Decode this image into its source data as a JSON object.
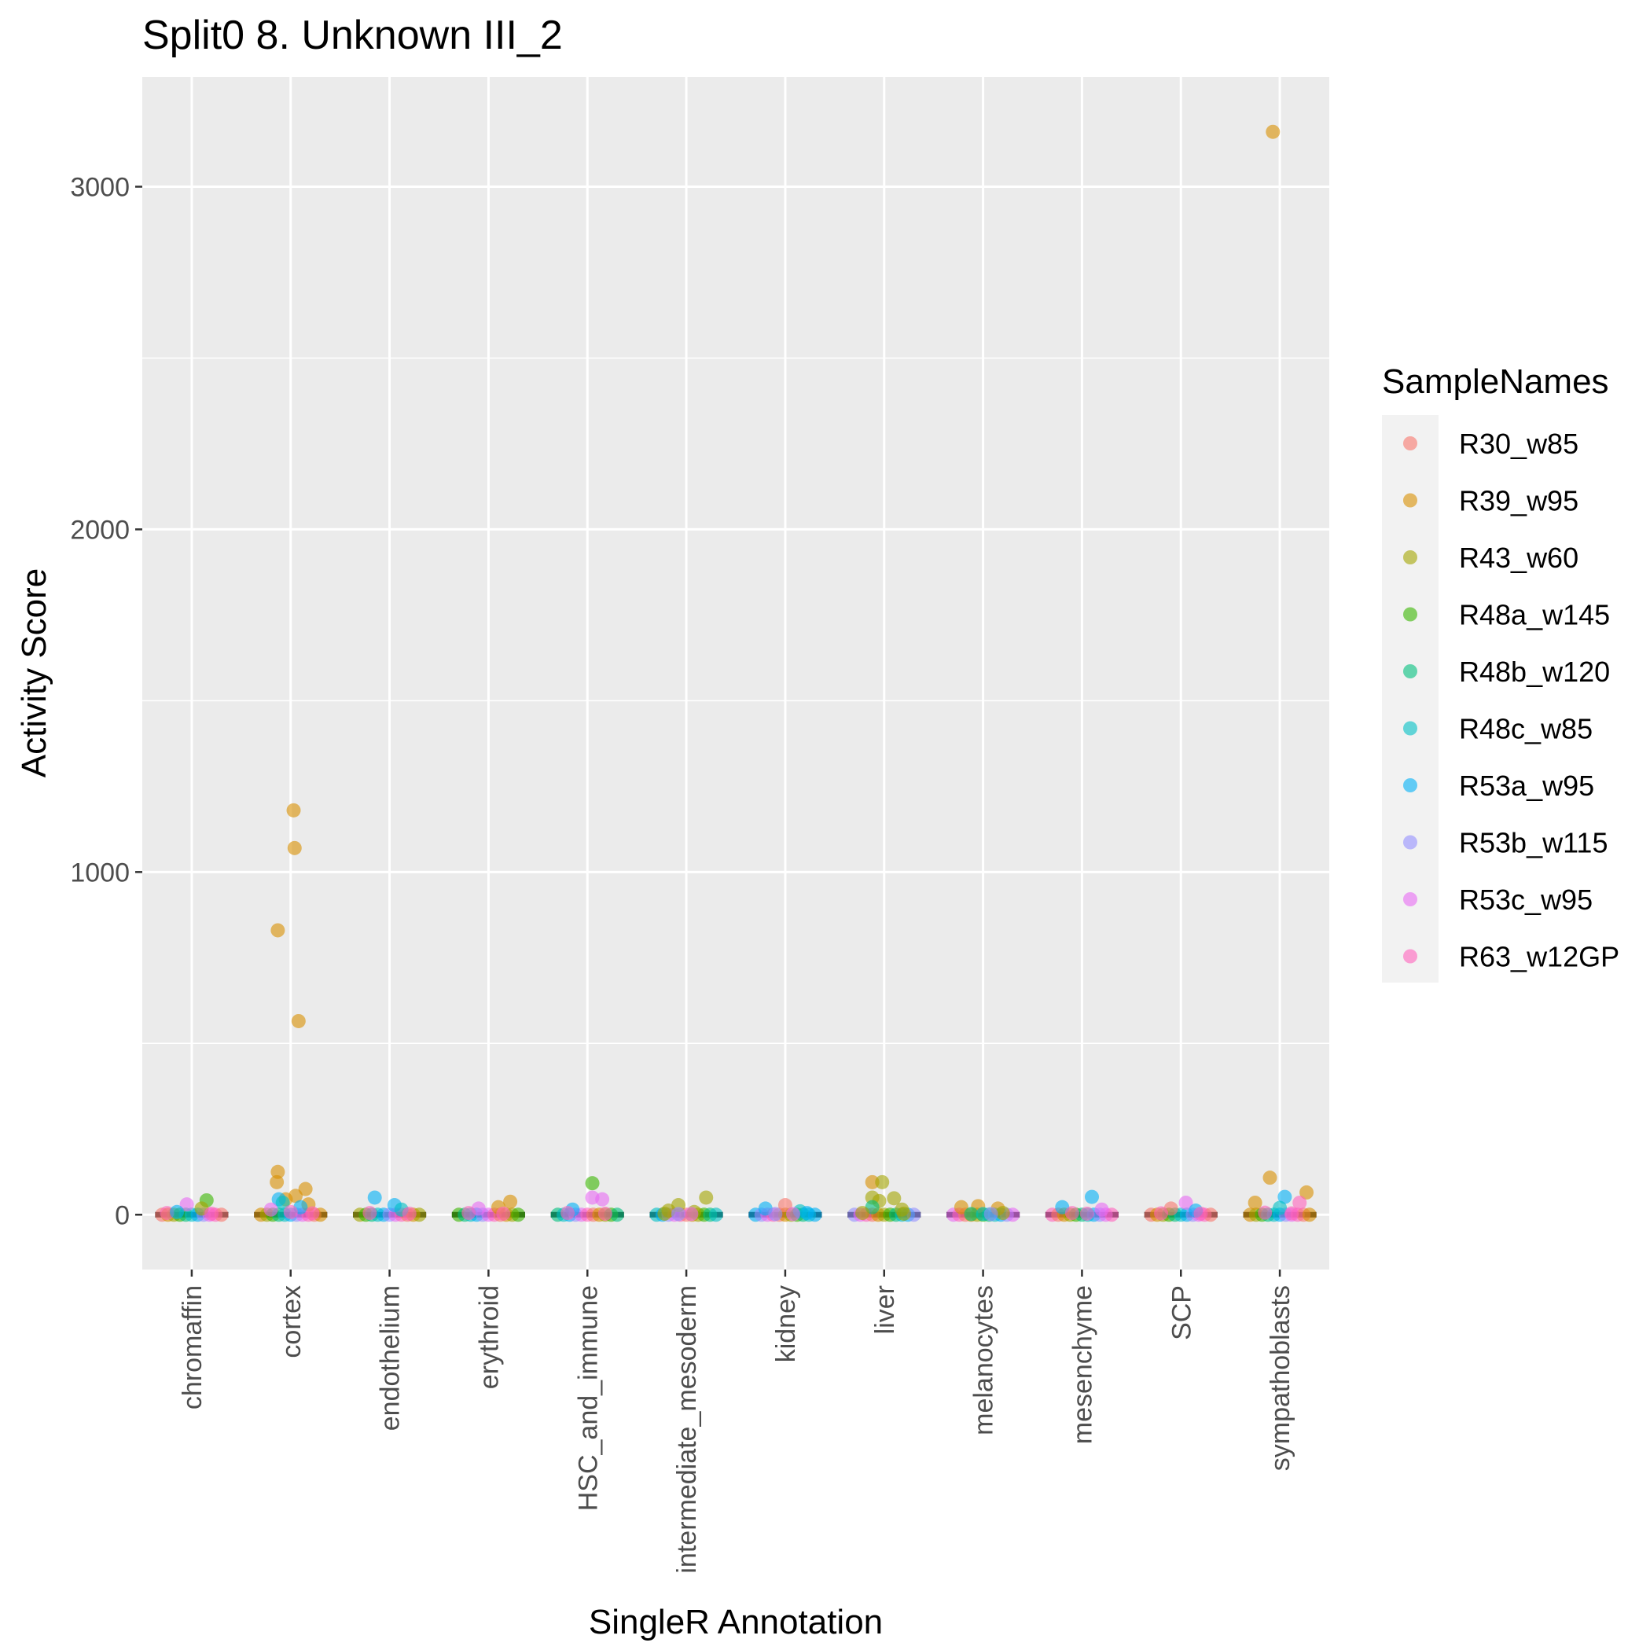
{
  "chart_data": {
    "type": "scatter",
    "title": "Split0 8. Unknown III_2",
    "xlabel": "SingleR Annotation",
    "ylabel": "Activity Score",
    "ylim": [
      -160,
      3320
    ],
    "yticks": [
      0,
      1000,
      2000,
      3000
    ],
    "y_minor_ticks": [
      500,
      1500,
      2500
    ],
    "grid": true,
    "legend": {
      "title": "SampleNames",
      "placement": "right",
      "entries": [
        "R30_w85",
        "R39_w95",
        "R43_w60",
        "R48a_w145",
        "R48b_w120",
        "R48c_w85",
        "R53a_w95",
        "R53b_w115",
        "R53c_w95",
        "R63_w12GP"
      ]
    },
    "colors": {
      "R30_w85": "#F8766D",
      "R39_w95": "#D89000",
      "R43_w60": "#A3A500",
      "R48a_w145": "#39B600",
      "R48b_w120": "#00BF7D",
      "R48c_w85": "#00BFC4",
      "R53a_w95": "#00B0F6",
      "R53b_w115": "#9590FF",
      "R53c_w95": "#E76BF3",
      "R63_w12GP": "#FF62BC"
    },
    "categories": [
      "chromaffin",
      "cortex",
      "endothelium",
      "erythroid",
      "HSC_and_immune",
      "intermediate_mesoderm",
      "kidney",
      "liver",
      "melanocytes",
      "mesenchyme",
      "SCP",
      "sympathoblasts"
    ],
    "medians": [
      0,
      0,
      0,
      0,
      0,
      0,
      0,
      0,
      0,
      0,
      0,
      0
    ],
    "points": [
      {
        "category": "chromaffin",
        "sample": "R48a_w145",
        "x_offset": 0.15,
        "y": 42
      },
      {
        "category": "chromaffin",
        "sample": "R53c_w95",
        "x_offset": -0.05,
        "y": 30
      },
      {
        "category": "chromaffin",
        "sample": "R43_w60",
        "x_offset": 0.1,
        "y": 18
      },
      {
        "category": "chromaffin",
        "sample": "R63_w12GP",
        "x_offset": -0.25,
        "y": 5
      },
      {
        "category": "chromaffin",
        "sample": "R63_w12GP",
        "x_offset": 0.2,
        "y": 3
      },
      {
        "category": "chromaffin",
        "sample": "R53a_w95",
        "x_offset": -0.15,
        "y": 8
      },
      {
        "category": "cortex",
        "sample": "R39_w95",
        "x_offset": 0.03,
        "y": 1180
      },
      {
        "category": "cortex",
        "sample": "R39_w95",
        "x_offset": 0.04,
        "y": 1070
      },
      {
        "category": "cortex",
        "sample": "R39_w95",
        "x_offset": -0.13,
        "y": 830
      },
      {
        "category": "cortex",
        "sample": "R39_w95",
        "x_offset": 0.08,
        "y": 565
      },
      {
        "category": "cortex",
        "sample": "R39_w95",
        "x_offset": -0.13,
        "y": 125
      },
      {
        "category": "cortex",
        "sample": "R39_w95",
        "x_offset": -0.14,
        "y": 95
      },
      {
        "category": "cortex",
        "sample": "R39_w95",
        "x_offset": 0.15,
        "y": 75
      },
      {
        "category": "cortex",
        "sample": "R39_w95",
        "x_offset": 0.05,
        "y": 55
      },
      {
        "category": "cortex",
        "sample": "R39_w95",
        "x_offset": -0.05,
        "y": 45
      },
      {
        "category": "cortex",
        "sample": "R53a_w95",
        "x_offset": -0.12,
        "y": 45
      },
      {
        "category": "cortex",
        "sample": "R48c_w85",
        "x_offset": -0.08,
        "y": 35
      },
      {
        "category": "cortex",
        "sample": "R39_w95",
        "x_offset": 0.18,
        "y": 30
      },
      {
        "category": "cortex",
        "sample": "R53a_w95",
        "x_offset": 0.1,
        "y": 22
      },
      {
        "category": "cortex",
        "sample": "R53c_w95",
        "x_offset": -0.2,
        "y": 15
      },
      {
        "category": "cortex",
        "sample": "R63_w12GP",
        "x_offset": 0.0,
        "y": 8
      },
      {
        "category": "cortex",
        "sample": "R63_w12GP",
        "x_offset": 0.22,
        "y": 4
      },
      {
        "category": "endothelium",
        "sample": "R53a_w95",
        "x_offset": -0.15,
        "y": 50
      },
      {
        "category": "endothelium",
        "sample": "R53a_w95",
        "x_offset": 0.05,
        "y": 28
      },
      {
        "category": "endothelium",
        "sample": "R48c_w85",
        "x_offset": 0.12,
        "y": 15
      },
      {
        "category": "endothelium",
        "sample": "R63_w12GP",
        "x_offset": -0.2,
        "y": 5
      },
      {
        "category": "endothelium",
        "sample": "R63_w12GP",
        "x_offset": 0.2,
        "y": 3
      },
      {
        "category": "erythroid",
        "sample": "R39_w95",
        "x_offset": 0.22,
        "y": 38
      },
      {
        "category": "erythroid",
        "sample": "R39_w95",
        "x_offset": 0.1,
        "y": 22
      },
      {
        "category": "erythroid",
        "sample": "R53c_w95",
        "x_offset": -0.1,
        "y": 18
      },
      {
        "category": "erythroid",
        "sample": "R63_w12GP",
        "x_offset": -0.2,
        "y": 5
      },
      {
        "category": "erythroid",
        "sample": "R63_w12GP",
        "x_offset": 0.15,
        "y": 3
      },
      {
        "category": "HSC_and_immune",
        "sample": "R48a_w145",
        "x_offset": 0.05,
        "y": 92
      },
      {
        "category": "HSC_and_immune",
        "sample": "R53c_w95",
        "x_offset": 0.05,
        "y": 50
      },
      {
        "category": "HSC_and_immune",
        "sample": "R53c_w95",
        "x_offset": 0.15,
        "y": 45
      },
      {
        "category": "HSC_and_immune",
        "sample": "R53a_w95",
        "x_offset": -0.15,
        "y": 15
      },
      {
        "category": "HSC_and_immune",
        "sample": "R63_w12GP",
        "x_offset": -0.2,
        "y": 5
      },
      {
        "category": "HSC_and_immune",
        "sample": "R63_w12GP",
        "x_offset": 0.18,
        "y": 3
      },
      {
        "category": "intermediate_mesoderm",
        "sample": "R43_w60",
        "x_offset": 0.2,
        "y": 50
      },
      {
        "category": "intermediate_mesoderm",
        "sample": "R43_w60",
        "x_offset": -0.08,
        "y": 28
      },
      {
        "category": "intermediate_mesoderm",
        "sample": "R43_w60",
        "x_offset": -0.18,
        "y": 12
      },
      {
        "category": "intermediate_mesoderm",
        "sample": "R43_w60",
        "x_offset": 0.08,
        "y": 8
      },
      {
        "category": "intermediate_mesoderm",
        "sample": "R43_w60",
        "x_offset": -0.22,
        "y": 3
      },
      {
        "category": "intermediate_mesoderm",
        "sample": "R53b_w115",
        "x_offset": -0.08,
        "y": 2
      },
      {
        "category": "intermediate_mesoderm",
        "sample": "R53c_w95",
        "x_offset": 0.05,
        "y": 2
      },
      {
        "category": "kidney",
        "sample": "R30_w85",
        "x_offset": 0.0,
        "y": 28
      },
      {
        "category": "kidney",
        "sample": "R53a_w95",
        "x_offset": -0.2,
        "y": 18
      },
      {
        "category": "kidney",
        "sample": "R48c_w85",
        "x_offset": 0.15,
        "y": 10
      },
      {
        "category": "kidney",
        "sample": "R53a_w95",
        "x_offset": 0.22,
        "y": 5
      },
      {
        "category": "kidney",
        "sample": "R53b_w115",
        "x_offset": -0.1,
        "y": 2
      },
      {
        "category": "kidney",
        "sample": "R53c_w95",
        "x_offset": 0.08,
        "y": 2
      },
      {
        "category": "liver",
        "sample": "R39_w95",
        "x_offset": -0.12,
        "y": 95
      },
      {
        "category": "liver",
        "sample": "R43_w60",
        "x_offset": -0.02,
        "y": 95
      },
      {
        "category": "liver",
        "sample": "R43_w60",
        "x_offset": -0.12,
        "y": 50
      },
      {
        "category": "liver",
        "sample": "R43_w60",
        "x_offset": 0.1,
        "y": 48
      },
      {
        "category": "liver",
        "sample": "R43_w60",
        "x_offset": -0.05,
        "y": 40
      },
      {
        "category": "liver",
        "sample": "R48b_w120",
        "x_offset": -0.12,
        "y": 22
      },
      {
        "category": "liver",
        "sample": "R43_w60",
        "x_offset": 0.18,
        "y": 15
      },
      {
        "category": "liver",
        "sample": "R43_w60",
        "x_offset": -0.22,
        "y": 5
      },
      {
        "category": "liver",
        "sample": "R43_w60",
        "x_offset": 0.2,
        "y": 3
      },
      {
        "category": "melanocytes",
        "sample": "R39_w95",
        "x_offset": -0.22,
        "y": 22
      },
      {
        "category": "melanocytes",
        "sample": "R39_w95",
        "x_offset": -0.05,
        "y": 25
      },
      {
        "category": "melanocytes",
        "sample": "R39_w95",
        "x_offset": 0.15,
        "y": 18
      },
      {
        "category": "melanocytes",
        "sample": "R43_w60",
        "x_offset": 0.2,
        "y": 5
      },
      {
        "category": "melanocytes",
        "sample": "R48b_w120",
        "x_offset": -0.12,
        "y": 2
      },
      {
        "category": "melanocytes",
        "sample": "R48c_w85",
        "x_offset": 0.0,
        "y": 2
      },
      {
        "category": "melanocytes",
        "sample": "R53b_w115",
        "x_offset": 0.08,
        "y": 2
      },
      {
        "category": "mesenchyme",
        "sample": "R53a_w95",
        "x_offset": 0.1,
        "y": 52
      },
      {
        "category": "mesenchyme",
        "sample": "R53a_w95",
        "x_offset": -0.2,
        "y": 22
      },
      {
        "category": "mesenchyme",
        "sample": "R53c_w95",
        "x_offset": 0.2,
        "y": 15
      },
      {
        "category": "mesenchyme",
        "sample": "R63_w12GP",
        "x_offset": -0.1,
        "y": 5
      },
      {
        "category": "mesenchyme",
        "sample": "R63_w12GP",
        "x_offset": 0.05,
        "y": 3
      },
      {
        "category": "SCP",
        "sample": "R53c_w95",
        "x_offset": 0.05,
        "y": 35
      },
      {
        "category": "SCP",
        "sample": "R30_w85",
        "x_offset": -0.1,
        "y": 18
      },
      {
        "category": "SCP",
        "sample": "R53a_w95",
        "x_offset": 0.15,
        "y": 12
      },
      {
        "category": "SCP",
        "sample": "R63_w12GP",
        "x_offset": -0.2,
        "y": 4
      },
      {
        "category": "SCP",
        "sample": "R63_w12GP",
        "x_offset": 0.2,
        "y": 3
      },
      {
        "category": "sympathoblasts",
        "sample": "R39_w95",
        "x_offset": -0.07,
        "y": 3160
      },
      {
        "category": "sympathoblasts",
        "sample": "R39_w95",
        "x_offset": -0.1,
        "y": 108
      },
      {
        "category": "sympathoblasts",
        "sample": "R39_w95",
        "x_offset": 0.27,
        "y": 65
      },
      {
        "category": "sympathoblasts",
        "sample": "R53a_w95",
        "x_offset": 0.05,
        "y": 52
      },
      {
        "category": "sympathoblasts",
        "sample": "R63_w12GP",
        "x_offset": 0.2,
        "y": 35
      },
      {
        "category": "sympathoblasts",
        "sample": "R39_w95",
        "x_offset": -0.25,
        "y": 35
      },
      {
        "category": "sympathoblasts",
        "sample": "R48c_w85",
        "x_offset": 0.0,
        "y": 20
      },
      {
        "category": "sympathoblasts",
        "sample": "R63_w12GP",
        "x_offset": -0.15,
        "y": 6
      },
      {
        "category": "sympathoblasts",
        "sample": "R63_w12GP",
        "x_offset": 0.12,
        "y": 4
      }
    ]
  }
}
